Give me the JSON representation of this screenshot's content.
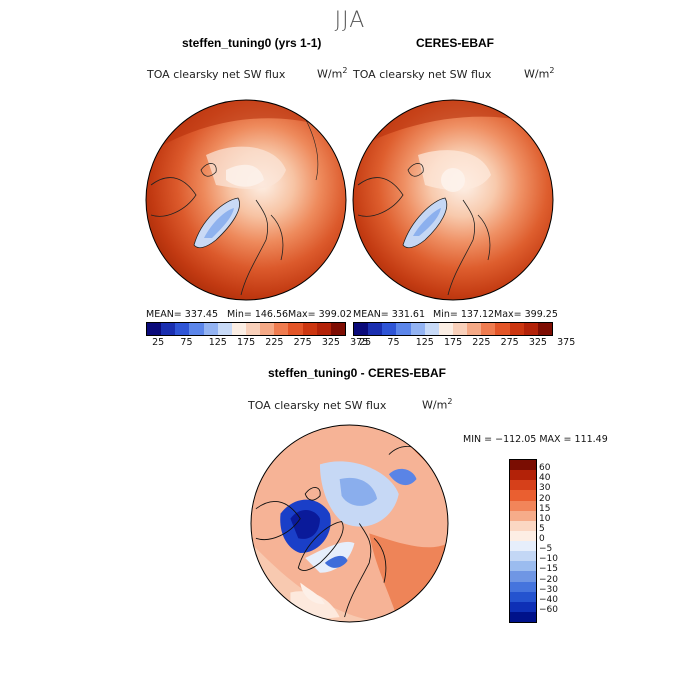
{
  "figure": {
    "season": "JJA",
    "units_base": "W/m",
    "units_exp": "2",
    "variable": "TOA clearsky net SW flux"
  },
  "panels": {
    "model": {
      "title": "steffen_tuning0 (yrs 1-1)",
      "mean": "MEAN= 337.45",
      "min": "Min= 146.56",
      "max": "Max= 399.02"
    },
    "obs": {
      "title": "CERES-EBAF",
      "mean": "MEAN= 331.61",
      "min": "Min= 137.12",
      "max": "Max= 399.25"
    },
    "diff": {
      "title": "steffen_tuning0 - CERES-EBAF",
      "minmax": "MIN = −112.05  MAX = 111.49"
    }
  },
  "colorbar_top": {
    "colors": [
      "#0a0a7a",
      "#1a2fb0",
      "#2f55d6",
      "#5c86ea",
      "#93b3f2",
      "#c8daf7",
      "#fbeee4",
      "#f9d0ba",
      "#f5a986",
      "#ef7c50",
      "#e35528",
      "#cc3610",
      "#b32208",
      "#7e0d03"
    ],
    "ticks": [
      "25",
      "75",
      "125",
      "175",
      "225",
      "275",
      "325",
      "375"
    ]
  },
  "colorbar_diff": {
    "colors": [
      "#7a0d02",
      "#b32208",
      "#d6401a",
      "#ea5f30",
      "#f2855a",
      "#f6ac8a",
      "#fbd7c3",
      "#fdeee4",
      "#e6eefb",
      "#c3d7f5",
      "#9bbcef",
      "#6f96e4",
      "#4574dd",
      "#2453cf",
      "#0e30b6",
      "#00128a"
    ],
    "labels": [
      "60",
      "40",
      "30",
      "20",
      "15",
      "10",
      "5",
      "0",
      "−5",
      "−10",
      "−15",
      "−20",
      "−30",
      "−40",
      "−60"
    ]
  }
}
